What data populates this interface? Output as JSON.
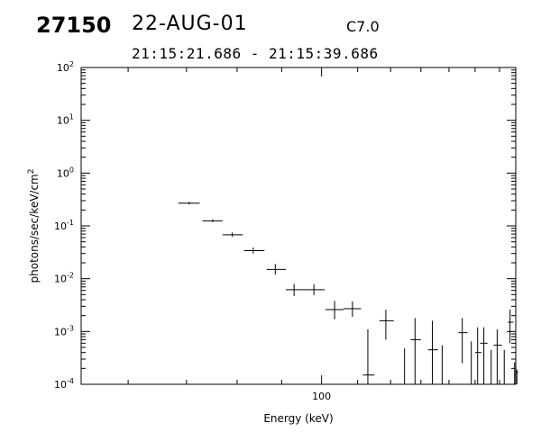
{
  "header": {
    "event_id": "27150",
    "date": "22-AUG-01",
    "flare_class": "C7.0",
    "time_range": "21:15:21.686 - 21:15:39.686"
  },
  "chart_data": {
    "type": "scatter",
    "style": "error-crosses",
    "title": "",
    "xlabel": "Energy (keV)",
    "ylabel": "photons/sec/keV/cm",
    "ylabel_superscript": "2",
    "xscale": "log",
    "yscale": "log",
    "xlim": [
      53,
      167
    ],
    "ylim": [
      0.0001,
      100
    ],
    "x_tick_labels": [
      "100"
    ],
    "y_tick_labels": [
      {
        "base": "10",
        "exp": "-4"
      },
      {
        "base": "10",
        "exp": "-3"
      },
      {
        "base": "10",
        "exp": "-2"
      },
      {
        "base": "10",
        "exp": "-1"
      },
      {
        "base": "10",
        "exp": "0"
      },
      {
        "base": "10",
        "exp": "1"
      },
      {
        "base": "10",
        "exp": "2"
      }
    ],
    "grid": false,
    "points": [
      {
        "x": 70.5,
        "xerr": [
          68.5,
          72.5
        ],
        "y": 0.27,
        "yerr": [
          0.255,
          0.285
        ]
      },
      {
        "x": 75.0,
        "xerr": [
          73.0,
          77.0
        ],
        "y": 0.125,
        "yerr": [
          0.118,
          0.133
        ]
      },
      {
        "x": 79.0,
        "xerr": [
          77.0,
          81.2
        ],
        "y": 0.068,
        "yerr": [
          0.062,
          0.075
        ]
      },
      {
        "x": 83.5,
        "xerr": [
          81.5,
          86.0
        ],
        "y": 0.034,
        "yerr": [
          0.03,
          0.039
        ]
      },
      {
        "x": 88.5,
        "xerr": [
          86.5,
          91.0
        ],
        "y": 0.015,
        "yerr": [
          0.012,
          0.019
        ]
      },
      {
        "x": 93.0,
        "xerr": [
          91.0,
          95.8
        ],
        "y": 0.0062,
        "yerr": [
          0.0047,
          0.008
        ]
      },
      {
        "x": 98.0,
        "xerr": [
          95.8,
          100.8
        ],
        "y": 0.0062,
        "yerr": [
          0.0049,
          0.0078
        ]
      },
      {
        "x": 103.5,
        "xerr": [
          101.0,
          106.0
        ],
        "y": 0.0026,
        "yerr": [
          0.0017,
          0.0038
        ]
      },
      {
        "x": 108.5,
        "xerr": [
          106.0,
          111.0
        ],
        "y": 0.0027,
        "yerr": [
          0.0019,
          0.0037
        ]
      },
      {
        "x": 113.0,
        "xerr": [
          111.5,
          115.0
        ],
        "y": 0.00015,
        "yerr": [
          0.0001,
          0.0011
        ]
      },
      {
        "x": 118.5,
        "xerr": [
          116.5,
          121.0
        ],
        "y": 0.0016,
        "yerr": [
          0.0007,
          0.0026
        ]
      },
      {
        "x": 124.5,
        "xerr": [
          124.5,
          124.5
        ],
        "y": 0.00045,
        "yerr": [
          0.0001,
          0.00048
        ]
      },
      {
        "x": 128.0,
        "xerr": [
          126.5,
          130.0
        ],
        "y": 0.0007,
        "yerr": [
          0.0001,
          0.0018
        ]
      },
      {
        "x": 134.0,
        "xerr": [
          132.5,
          136.0
        ],
        "y": 0.00045,
        "yerr": [
          0.0001,
          0.0016
        ]
      },
      {
        "x": 137.5,
        "xerr": [
          137.5,
          137.5
        ],
        "y": 0.0005,
        "yerr": [
          0.0001,
          0.00055
        ]
      },
      {
        "x": 145.0,
        "xerr": [
          143.5,
          147.0
        ],
        "y": 0.00095,
        "yerr": [
          0.00025,
          0.0018
        ]
      },
      {
        "x": 148.5,
        "xerr": [
          148.5,
          148.5
        ],
        "y": 0.0006,
        "yerr": [
          0.0001,
          0.00065
        ]
      },
      {
        "x": 151.0,
        "xerr": [
          150.0,
          152.5
        ],
        "y": 0.0004,
        "yerr": [
          0.0001,
          0.0012
        ]
      },
      {
        "x": 153.5,
        "xerr": [
          152.0,
          155.0
        ],
        "y": 0.0006,
        "yerr": [
          0.0001,
          0.0012
        ]
      },
      {
        "x": 156.5,
        "xerr": [
          156.5,
          156.5
        ],
        "y": 0.0004,
        "yerr": [
          0.0001,
          0.00045
        ]
      },
      {
        "x": 159.0,
        "xerr": [
          157.5,
          161.0
        ],
        "y": 0.00055,
        "yerr": [
          0.0001,
          0.0011
        ]
      },
      {
        "x": 162.0,
        "xerr": [
          162.0,
          162.0
        ],
        "y": 0.0004,
        "yerr": [
          0.0001,
          0.00045
        ]
      },
      {
        "x": 164.5,
        "xerr": [
          163.5,
          166.0
        ],
        "y": 0.0015,
        "yerr": [
          0.0006,
          0.0026
        ]
      },
      {
        "x": 166.5,
        "xerr": [
          166.5,
          166.5
        ],
        "y": 0.00022,
        "yerr": [
          0.0001,
          0.00026
        ]
      },
      {
        "x": 167.5,
        "xerr": [
          166.8,
          168.0
        ],
        "y": 0.00017,
        "yerr": [
          0.0001,
          0.00019
        ]
      }
    ]
  }
}
